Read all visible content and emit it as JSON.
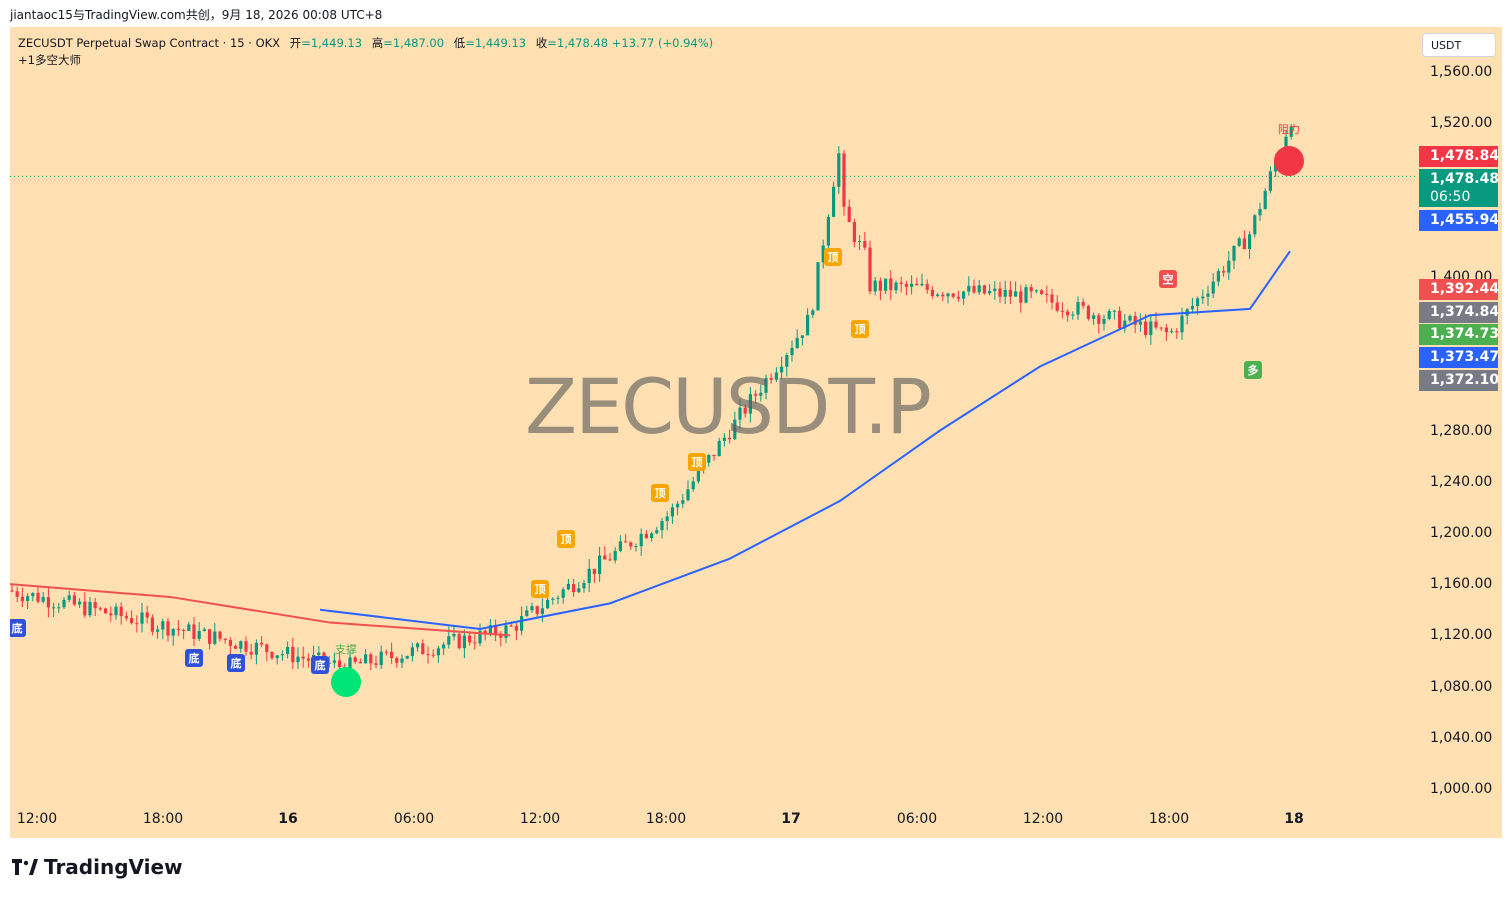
{
  "header_share": "jiantaoc15与TradingView.com共创，9月 18, 2026 00:08 UTC+8",
  "legend": {
    "title": "ZECUSDT Perpetual Swap Contract · 15 · OKX",
    "open_label": "开",
    "open": "=1,449.13",
    "high_label": "高",
    "high": "=1,487.00",
    "low_label": "低",
    "low": "=1,449.13",
    "close_label": "收",
    "close": "=1,478.48",
    "change": "+13.77 (+0.94%)",
    "indicator": "+1多空大师"
  },
  "watermark": "ZECUSDT.P",
  "currency": "USDT",
  "brand": "TradingView",
  "colors": {
    "background": "#ffe0b2",
    "up": "#089981",
    "down": "#f23645",
    "ema": "#2962ff",
    "ma_red": "#f05050"
  },
  "price_tags": [
    {
      "value": "1,478.84",
      "color": "#f23645"
    },
    {
      "value": "1,478.48",
      "color": "#089981"
    },
    {
      "value": "06:50",
      "color": "#089981"
    },
    {
      "value": "1,455.94",
      "color": "#2962ff"
    },
    {
      "value": "1,392.44",
      "color": "#f05050"
    },
    {
      "value": "1,374.84",
      "color": "#787b86"
    },
    {
      "value": "1,374.73",
      "color": "#4caf50"
    },
    {
      "value": "1,373.47",
      "color": "#2962ff"
    },
    {
      "value": "1,372.10",
      "color": "#787b86"
    }
  ],
  "annotations": {
    "resistance": "阻力",
    "support": "支撑",
    "top": "顶",
    "bottom": "底",
    "short": "空",
    "long": "多"
  },
  "chart_data": {
    "type": "candlestick",
    "symbol": "ZECUSDT.P",
    "interval": "15",
    "y_ticks": [
      "1,560.00",
      "1,520.00",
      "1,400.00",
      "1,280.00",
      "1,240.00",
      "1,200.00",
      "1,160.00",
      "1,120.00",
      "1,080.00",
      "1,040.00",
      "1,000.00"
    ],
    "y_tick_values": [
      1560,
      1520,
      1400,
      1280,
      1240,
      1200,
      1160,
      1120,
      1080,
      1040,
      1000
    ],
    "x_ticks": [
      "12:00",
      "18:00",
      "16",
      "06:00",
      "12:00",
      "18:00",
      "17",
      "06:00",
      "12:00",
      "18:00",
      "18"
    ],
    "ylim": [
      990,
      1580
    ],
    "key_points": [
      {
        "label": "start",
        "price": 1155
      },
      {
        "label": "16 low",
        "price": 1095
      },
      {
        "label": "16 12:00",
        "price": 1125
      },
      {
        "label": "16 18:00",
        "price": 1215
      },
      {
        "label": "17 spike",
        "price": 1395
      },
      {
        "label": "17 12:00",
        "price": 1385
      },
      {
        "label": "17 18:00",
        "price": 1355
      },
      {
        "label": "18 close",
        "price": 1478.48
      }
    ],
    "ema_line": [
      1140,
      1125,
      1145,
      1180,
      1225,
      1280,
      1330,
      1370,
      1375,
      1420
    ],
    "ma_red_line": [
      1160,
      1150,
      1130,
      1120
    ]
  }
}
